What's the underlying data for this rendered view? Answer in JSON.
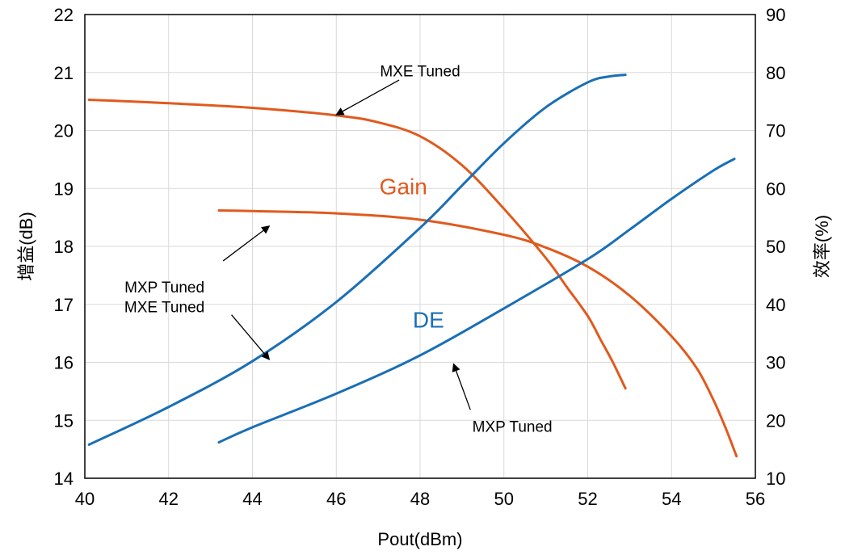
{
  "chart_data": {
    "type": "line",
    "xlabel": "Pout(dBm)",
    "ylabel_left": "增益(dB)",
    "ylabel_right": "效率(%)",
    "xlim": [
      40,
      56
    ],
    "ylim_left": [
      14,
      22
    ],
    "ylim_right": [
      10,
      90
    ],
    "x_ticks": [
      "40",
      "42",
      "44",
      "46",
      "48",
      "50",
      "52",
      "54",
      "56"
    ],
    "y_left_ticks": [
      "14",
      "15",
      "16",
      "17",
      "18",
      "19",
      "20",
      "21",
      "22"
    ],
    "y_right_ticks": [
      "10",
      "20",
      "30",
      "40",
      "50",
      "60",
      "70",
      "80",
      "90"
    ],
    "grid": true,
    "colors": {
      "gain": "#E05A1E",
      "de": "#1A6FB5",
      "grid": "#d9d9d9"
    },
    "group_labels": {
      "gain": "Gain",
      "de": "DE"
    },
    "series": [
      {
        "group": "gain",
        "axis": "left",
        "x": [
          40.1,
          42,
          44,
          46,
          47,
          48,
          49,
          50,
          51,
          51.5,
          52,
          52.3,
          52.6,
          52.9
        ],
        "y": [
          20.53,
          20.47,
          20.39,
          20.26,
          20.14,
          19.9,
          19.4,
          18.65,
          17.8,
          17.3,
          16.8,
          16.4,
          16.0,
          15.55
        ]
      },
      {
        "group": "gain",
        "axis": "left",
        "x": [
          43.2,
          44,
          46,
          48,
          50,
          51,
          52,
          53,
          54,
          54.6,
          55,
          55.3,
          55.55
        ],
        "y": [
          18.62,
          18.61,
          18.57,
          18.46,
          18.2,
          17.98,
          17.65,
          17.15,
          16.45,
          15.9,
          15.35,
          14.85,
          14.38
        ]
      },
      {
        "group": "de",
        "axis": "right",
        "x": [
          40.1,
          42,
          44,
          46,
          48,
          49,
          50,
          51,
          52,
          52.5,
          52.9
        ],
        "y": [
          15.8,
          22.3,
          30.2,
          40.4,
          53.2,
          60.5,
          67.8,
          74,
          78.3,
          79.3,
          79.6
        ]
      },
      {
        "group": "de",
        "axis": "right",
        "x": [
          43.2,
          44,
          46,
          48,
          50,
          52,
          53,
          54,
          55,
          55.5
        ],
        "y": [
          16.2,
          18.8,
          24.6,
          31.2,
          39.3,
          47.8,
          52.9,
          58.2,
          63.1,
          65.1
        ]
      }
    ],
    "annotations": [
      {
        "text": "MXE Tuned",
        "x": 48,
        "y": 21.03,
        "arrow_from": [
          47.5,
          20.87
        ],
        "arrow_to": [
          46.0,
          20.27
        ]
      },
      {
        "text": "MXP Tuned",
        "x": 41.9,
        "y": 17.3,
        "arrow_from": [
          43.3,
          17.75
        ],
        "arrow_to": [
          44.4,
          18.35
        ]
      },
      {
        "text": "MXE Tuned",
        "x": 41.9,
        "y": 16.96,
        "arrow_from": [
          43.5,
          16.82
        ],
        "arrow_to": [
          44.4,
          16.05
        ]
      },
      {
        "text": "MXP Tuned",
        "x": 50.2,
        "y": 14.9,
        "arrow_from": [
          49.2,
          15.18
        ],
        "arrow_to": [
          48.8,
          15.97
        ]
      }
    ]
  }
}
